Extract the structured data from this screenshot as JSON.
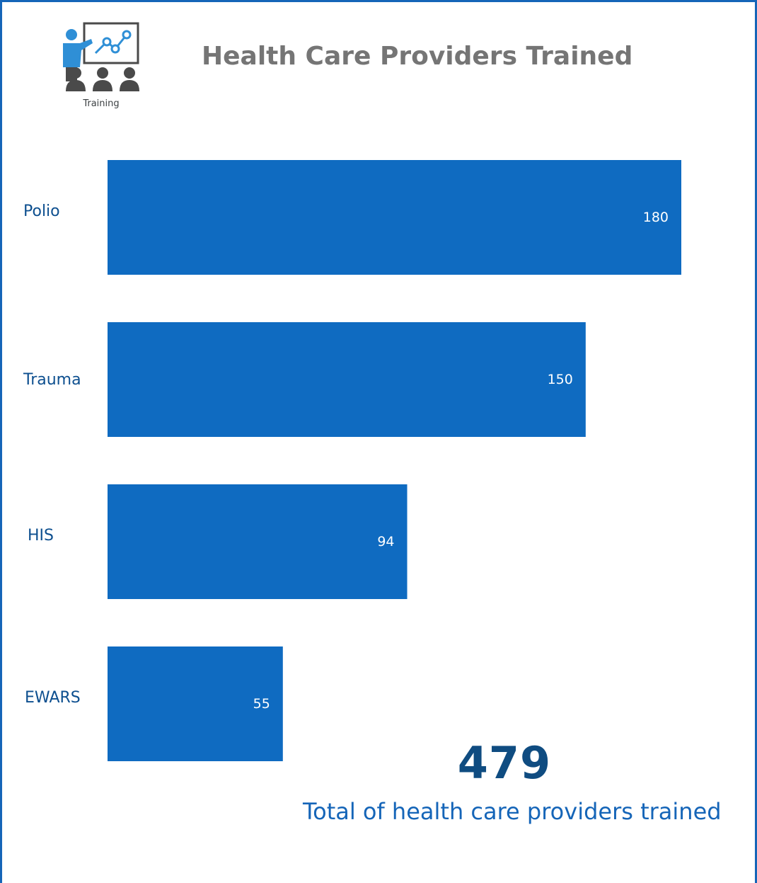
{
  "logo": {
    "icon": "training-presentation-icon",
    "caption": "Training"
  },
  "header": {
    "title": "Health Care Providers Trained"
  },
  "chart_data": {
    "type": "bar",
    "orientation": "horizontal",
    "title": "Health Care Providers Trained",
    "categories": [
      "Polio",
      "Trauma",
      "HIS",
      "EWARS"
    ],
    "values": [
      180,
      150,
      94,
      55
    ],
    "xlim": [
      0,
      180
    ],
    "grid": false,
    "legend": "none",
    "bar_color": "#0f6bc1"
  },
  "summary": {
    "total_value": "479",
    "total_caption": "Total of health care providers trained"
  }
}
